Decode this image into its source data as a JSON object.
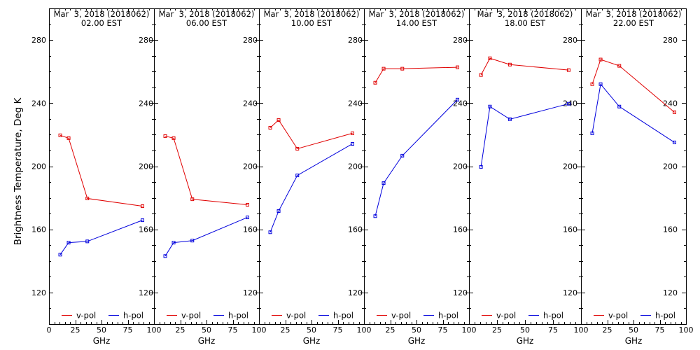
{
  "chart_data": [
    {
      "type": "line",
      "title": "Mar  3, 2018 (2018062)",
      "subtitle": "02.00 EST",
      "xlabel": "GHz",
      "ylabel": "Brightness Temperature, Deg K",
      "xlim": [
        0,
        100
      ],
      "ylim": [
        100,
        300
      ],
      "xticks": [
        0,
        25,
        50,
        75,
        100
      ],
      "yticks": [
        120,
        160,
        200,
        240,
        280
      ],
      "grid": false,
      "legend_position": "bottom",
      "x": [
        10.7,
        18.7,
        36.5,
        89.0
      ],
      "series": [
        {
          "name": "v-pol",
          "color": "#e00000",
          "values": [
            219.6,
            217.8,
            179.6,
            174.7
          ]
        },
        {
          "name": "h-pol",
          "color": "#0000dd",
          "values": [
            144.0,
            151.6,
            152.4,
            165.8
          ]
        }
      ]
    },
    {
      "type": "line",
      "title": "Mar  3, 2018 (2018062)",
      "subtitle": "06.00 EST",
      "xlabel": "GHz",
      "xlim": [
        0,
        100
      ],
      "ylim": [
        100,
        300
      ],
      "xticks": [
        25,
        50,
        75,
        100
      ],
      "yticks": [
        120,
        160,
        200,
        240,
        280
      ],
      "grid": false,
      "legend_position": "bottom",
      "x": [
        10.7,
        18.7,
        36.5,
        89.0
      ],
      "series": [
        {
          "name": "v-pol",
          "color": "#e00000",
          "values": [
            219.1,
            217.8,
            179.1,
            175.6
          ]
        },
        {
          "name": "h-pol",
          "color": "#0000dd",
          "values": [
            143.1,
            151.6,
            152.9,
            167.6
          ]
        }
      ]
    },
    {
      "type": "line",
      "title": "Mar  3, 2018 (2018062)",
      "subtitle": "10.00 EST",
      "xlabel": "GHz",
      "xlim": [
        0,
        100
      ],
      "ylim": [
        100,
        300
      ],
      "xticks": [
        25,
        50,
        75,
        100
      ],
      "yticks": [
        120,
        160,
        200,
        240,
        280
      ],
      "grid": false,
      "legend_position": "bottom",
      "x": [
        10.7,
        18.7,
        36.5,
        89.0
      ],
      "series": [
        {
          "name": "v-pol",
          "color": "#e00000",
          "values": [
            224.4,
            229.3,
            211.1,
            220.9
          ]
        },
        {
          "name": "h-pol",
          "color": "#0000dd",
          "values": [
            158.2,
            171.6,
            194.2,
            214.2
          ]
        }
      ]
    },
    {
      "type": "line",
      "title": "Mar  3, 2018 (2018062)",
      "subtitle": "14.00 EST",
      "xlabel": "GHz",
      "xlim": [
        0,
        100
      ],
      "ylim": [
        100,
        300
      ],
      "xticks": [
        25,
        50,
        75,
        100
      ],
      "yticks": [
        120,
        160,
        200,
        240,
        280
      ],
      "grid": false,
      "legend_position": "bottom",
      "x": [
        10.7,
        18.7,
        36.5,
        89.0
      ],
      "series": [
        {
          "name": "v-pol",
          "color": "#e00000",
          "values": [
            252.9,
            261.8,
            261.8,
            262.7
          ]
        },
        {
          "name": "h-pol",
          "color": "#0000dd",
          "values": [
            168.4,
            189.3,
            206.7,
            242.2
          ]
        }
      ]
    },
    {
      "type": "line",
      "title": "Mar  3, 2018 (2018062)",
      "subtitle": "18.00 EST",
      "xlabel": "GHz",
      "xlim": [
        0,
        100
      ],
      "ylim": [
        100,
        300
      ],
      "xticks": [
        25,
        50,
        75,
        100
      ],
      "yticks": [
        120,
        160,
        200,
        240,
        280
      ],
      "grid": false,
      "legend_position": "bottom",
      "x": [
        10.7,
        18.7,
        36.5,
        89.0
      ],
      "series": [
        {
          "name": "v-pol",
          "color": "#e00000",
          "values": [
            257.8,
            268.4,
            264.4,
            260.9
          ]
        },
        {
          "name": "h-pol",
          "color": "#0000dd",
          "values": [
            199.6,
            237.8,
            229.8,
            239.6
          ]
        }
      ]
    },
    {
      "type": "line",
      "title": "Mar  3, 2018 (2018062)",
      "subtitle": "22.00 EST",
      "xlabel": "GHz",
      "xlim": [
        0,
        100
      ],
      "ylim": [
        100,
        300
      ],
      "xticks": [
        25,
        50,
        75,
        100
      ],
      "yticks": [
        120,
        160,
        200,
        240,
        280
      ],
      "grid": false,
      "legend_position": "bottom",
      "x": [
        10.7,
        18.7,
        36.5,
        89.0
      ],
      "series": [
        {
          "name": "v-pol",
          "color": "#e00000",
          "values": [
            252.0,
            267.6,
            263.6,
            234.2
          ]
        },
        {
          "name": "h-pol",
          "color": "#0000dd",
          "values": [
            220.9,
            252.0,
            237.8,
            215.1
          ]
        }
      ]
    }
  ]
}
